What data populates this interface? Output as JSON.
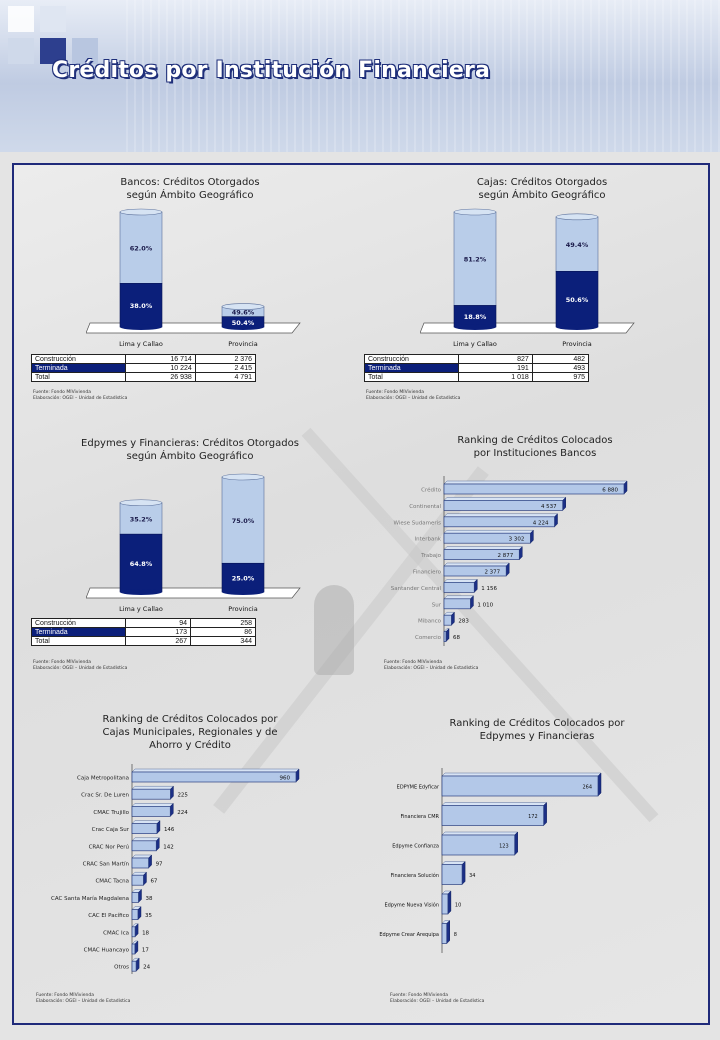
{
  "page": {
    "title": "Créditos por Institución Financiera"
  },
  "source": {
    "line1": "Fuente: Fondo MIVivienda",
    "line2": "Elaboración: OGEI – Unidad de Estadística"
  },
  "chart_data": [
    {
      "id": "bancos",
      "type": "bar",
      "stacked": true,
      "title_line1": "Bancos: Créditos Otorgados",
      "title_line2": "según Ámbito Geográfico",
      "categories": [
        "Lima y Callao",
        "Provincia"
      ],
      "series": [
        {
          "name": "Construcción",
          "values": [
            16714,
            2376
          ],
          "pct": [
            "62.0%",
            "49.6%"
          ]
        },
        {
          "name": "Terminada",
          "values": [
            10224,
            2415
          ],
          "pct": [
            "38.0%",
            "50.4%"
          ]
        }
      ],
      "totals": [
        26938,
        4791
      ],
      "table": {
        "rows": [
          {
            "label": "Construcción",
            "v1": "16 714",
            "v2": "2 376"
          },
          {
            "label": "Terminada",
            "v1": "10 224",
            "v2": "2 415"
          },
          {
            "label": "Total",
            "v1": "26 938",
            "v2": "4 791"
          }
        ]
      }
    },
    {
      "id": "cajas",
      "type": "bar",
      "stacked": true,
      "title_line1": "Cajas: Créditos Otorgados",
      "title_line2": "según Ámbito Geográfico",
      "categories": [
        "Lima y Callao",
        "Provincia"
      ],
      "series": [
        {
          "name": "Construcción",
          "values": [
            827,
            482
          ],
          "pct": [
            "81.2%",
            "49.4%"
          ]
        },
        {
          "name": "Terminada",
          "values": [
            191,
            493
          ],
          "pct": [
            "18.8%",
            "50.6%"
          ]
        }
      ],
      "totals": [
        1018,
        975
      ],
      "table": {
        "rows": [
          {
            "label": "Construcción",
            "v1": "827",
            "v2": "482"
          },
          {
            "label": "Terminada",
            "v1": "191",
            "v2": "493"
          },
          {
            "label": "Total",
            "v1": "1 018",
            "v2": "975"
          }
        ]
      }
    },
    {
      "id": "edpymes",
      "type": "bar",
      "stacked": true,
      "title_line1": "Edpymes y Financieras: Créditos Otorgados",
      "title_line2": "según Ámbito Geográfico",
      "categories": [
        "Lima y Callao",
        "Provincia"
      ],
      "series": [
        {
          "name": "Construcción",
          "values": [
            94,
            258
          ],
          "pct": [
            "35.2%",
            "75.0%"
          ]
        },
        {
          "name": "Terminada",
          "values": [
            173,
            86
          ],
          "pct": [
            "64.8%",
            "25.0%"
          ]
        }
      ],
      "totals": [
        267,
        344
      ],
      "table": {
        "rows": [
          {
            "label": "Construcción",
            "v1": "94",
            "v2": "258"
          },
          {
            "label": "Terminada",
            "v1": "173",
            "v2": "86"
          },
          {
            "label": "Total",
            "v1": "267",
            "v2": "344"
          }
        ]
      }
    },
    {
      "id": "ranking-bancos",
      "type": "bar",
      "orientation": "horizontal",
      "title_line1": "Ranking de Créditos Colocados",
      "title_line2": "por Instituciones Bancos",
      "categories": [
        "Crédito",
        "Continental",
        "Wiese Sudameris",
        "Interbank",
        "Trabajo",
        "Financiero",
        "Santander Central",
        "Sur",
        "Mibanco",
        "Comercio"
      ],
      "values": [
        6880,
        4537,
        4224,
        3302,
        2877,
        2377,
        1156,
        1010,
        283,
        68
      ],
      "labels": [
        "6 880",
        "4 537",
        "4 224",
        "3 302",
        "2 877",
        "2 377",
        "1 156",
        "1 010",
        "283",
        "68"
      ]
    },
    {
      "id": "ranking-cajas",
      "type": "bar",
      "orientation": "horizontal",
      "title_line1": "Ranking de Créditos Colocados por",
      "title_line2": "Cajas Municipales, Regionales y de",
      "title_line3": "Ahorro y Crédito",
      "categories": [
        "Caja Metropolitana",
        "Crac Sr. De Luren",
        "CMAC Trujillo",
        "Crac Caja Sur",
        "CRAC Nor Perú",
        "CRAC San Martín",
        "CMAC Tacna",
        "CAC Santa María Magdalena",
        "CAC El Pacífico",
        "CMAC Ica",
        "CMAC Huancayo",
        "Otros"
      ],
      "values": [
        960,
        225,
        224,
        146,
        142,
        97,
        67,
        38,
        35,
        18,
        17,
        24
      ],
      "labels": [
        "960",
        "225",
        "224",
        "146",
        "142",
        "97",
        "67",
        "38",
        "35",
        "18",
        "17",
        "24"
      ]
    },
    {
      "id": "ranking-edpymes",
      "type": "bar",
      "orientation": "horizontal",
      "title_line1": "Ranking de Créditos Colocados por",
      "title_line2": "Edpymes y Financieras",
      "categories": [
        "EDPYME Edyficar",
        "Financiera CMR",
        "Edpyme Confianza",
        "Financiera Solución",
        "Edpyme Nueva Visión",
        "Edpyme Crear Arequipa"
      ],
      "values": [
        264,
        172,
        123,
        34,
        10,
        8
      ],
      "labels": [
        "264",
        "172",
        "123",
        "34",
        "10",
        "8"
      ]
    }
  ]
}
